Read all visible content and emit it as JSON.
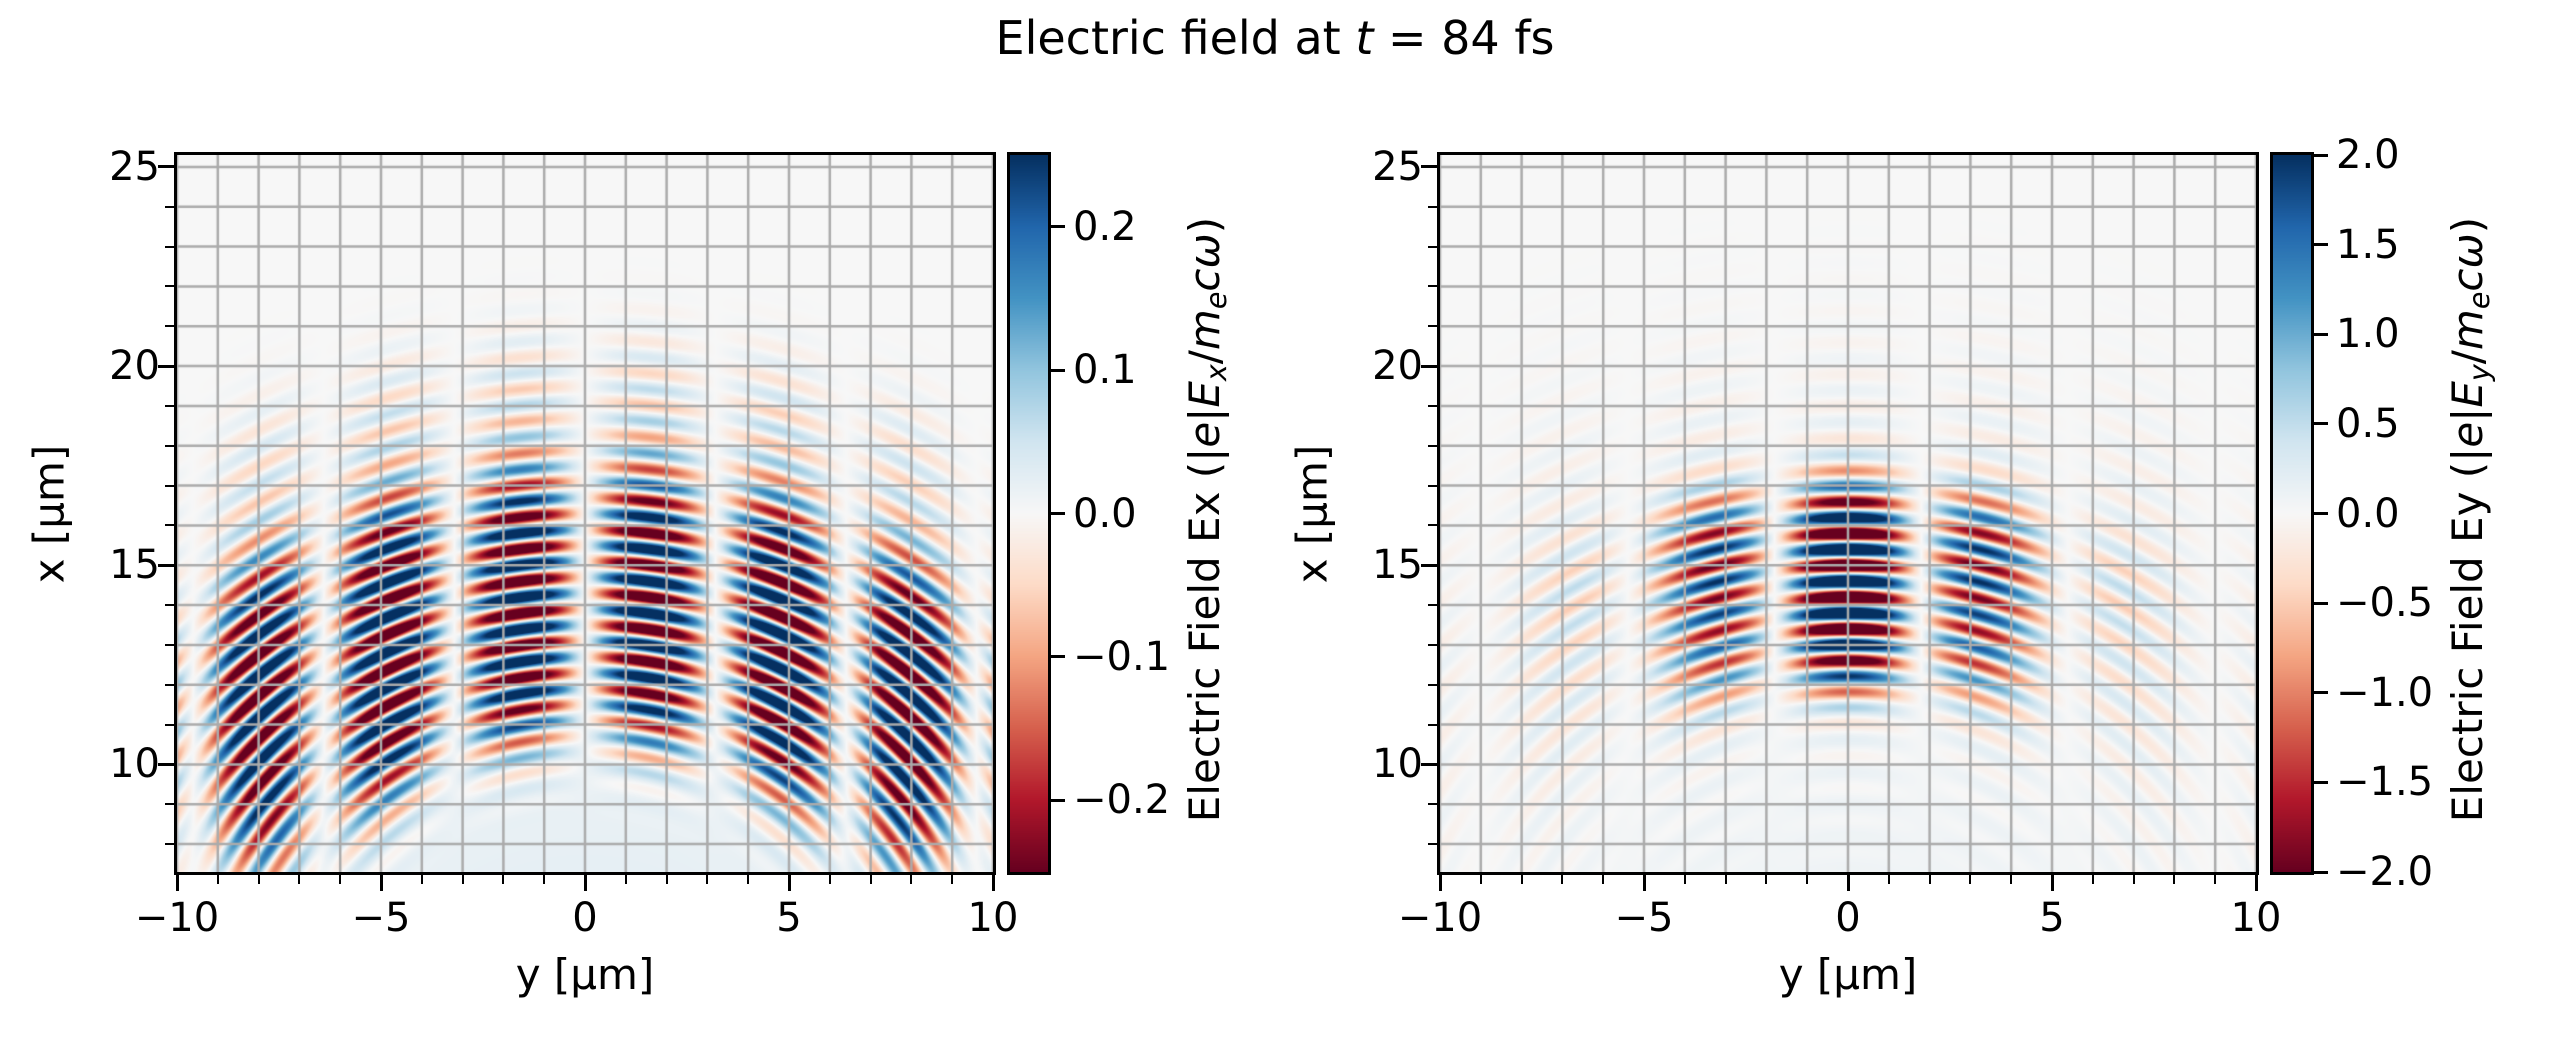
{
  "title": {
    "pre": "Electric field at ",
    "var": "t",
    "post": " = 84 fs"
  },
  "colormap": {
    "name": "RdBu",
    "stops": [
      "#67001f",
      "#b2182b",
      "#d6604d",
      "#f4a582",
      "#fddbc7",
      "#f7f7f7",
      "#d1e5f0",
      "#92c5de",
      "#4393c3",
      "#2166ac",
      "#053061"
    ]
  },
  "grid_color": "#ababab",
  "chart_data": [
    {
      "type": "heatmap",
      "panel": "left",
      "component": "Ex",
      "xlabel": "y [μm]",
      "ylabel": "x [μm]",
      "xlim": [
        -10,
        10
      ],
      "ylim": [
        7.3,
        25.3
      ],
      "grid": true,
      "xticks": {
        "values": [
          -10,
          -5,
          0,
          5,
          10
        ],
        "labels": [
          "−10",
          "−5",
          "0",
          "5",
          "10"
        ],
        "minor_step": 1
      },
      "yticks": {
        "values": [
          10,
          15,
          20,
          25
        ],
        "labels": [
          "10",
          "15",
          "20",
          "25"
        ],
        "minor_step": 1
      },
      "colorbar": {
        "vmin": -0.25,
        "vmax": 0.25,
        "ticks": [
          0.2,
          0.1,
          0.0,
          -0.1,
          -0.2
        ],
        "tick_labels": [
          "0.2",
          "0.1",
          "0.0",
          "−0.1",
          "−0.2"
        ],
        "label_parts": [
          {
            "t": "Electric Field Ex (|",
            "it": false,
            "sub": false
          },
          {
            "t": "e",
            "it": true,
            "sub": false
          },
          {
            "t": "|",
            "it": false,
            "sub": false
          },
          {
            "t": "E",
            "it": true,
            "sub": false
          },
          {
            "t": "x",
            "it": true,
            "sub": true
          },
          {
            "t": "/",
            "it": false,
            "sub": false
          },
          {
            "t": "m",
            "it": true,
            "sub": false
          },
          {
            "t": "e",
            "it": true,
            "sub": true
          },
          {
            "t": "c",
            "it": true,
            "sub": false
          },
          {
            "t": "ω",
            "it": true,
            "sub": false
          },
          {
            "t": ")",
            "it": false,
            "sub": false
          }
        ]
      },
      "field": {
        "description": "Transverse snapshot of Ex of a focused laser pulse: annular wave packet of curved wavefronts centered below the frame, odd node along y=0, strong side lobes reaching the lower corners, faint outer arcs and a diffuse blue glow near the bottom.",
        "source_x": 2.5,
        "source_y": 0,
        "wavelength": 0.8,
        "phase": 0.0,
        "radial_center": 11.5,
        "radial_width": 3.5,
        "radial_power": 4,
        "angular_width": 1.05,
        "angular_power": 8,
        "transverse": "sin",
        "transverse_period": 6.4,
        "halo_amp": 0.2,
        "halo_radius": 16.4,
        "halo_width": 1.8,
        "halo_angular_width": 1.0,
        "bias_amp": 0.1,
        "bias_radius": 8.5,
        "amplitude": 1.45
      }
    },
    {
      "type": "heatmap",
      "panel": "right",
      "component": "Ey",
      "xlabel": "y [μm]",
      "ylabel": "x [μm]",
      "xlim": [
        -10,
        10
      ],
      "ylim": [
        7.3,
        25.3
      ],
      "grid": true,
      "xticks": {
        "values": [
          -10,
          -5,
          0,
          5,
          10
        ],
        "labels": [
          "−10",
          "−5",
          "0",
          "5",
          "10"
        ],
        "minor_step": 1
      },
      "yticks": {
        "values": [
          10,
          15,
          20,
          25
        ],
        "labels": [
          "10",
          "15",
          "20",
          "25"
        ],
        "minor_step": 1
      },
      "colorbar": {
        "vmin": -2.0,
        "vmax": 2.0,
        "ticks": [
          2.0,
          1.5,
          1.0,
          0.5,
          0.0,
          -0.5,
          -1.0,
          -1.5,
          -2.0
        ],
        "tick_labels": [
          "2.0",
          "1.5",
          "1.0",
          "0.5",
          "0.0",
          "−0.5",
          "−1.0",
          "−1.5",
          "−2.0"
        ],
        "label_parts": [
          {
            "t": "Electric Field Ey (|",
            "it": false,
            "sub": false
          },
          {
            "t": "e",
            "it": true,
            "sub": false
          },
          {
            "t": "|",
            "it": false,
            "sub": false
          },
          {
            "t": "E",
            "it": true,
            "sub": false
          },
          {
            "t": "y",
            "it": true,
            "sub": true
          },
          {
            "t": "/",
            "it": false,
            "sub": false
          },
          {
            "t": "m",
            "it": true,
            "sub": false
          },
          {
            "t": "e",
            "it": true,
            "sub": true
          },
          {
            "t": "c",
            "it": true,
            "sub": false
          },
          {
            "t": "ω",
            "it": true,
            "sub": false
          },
          {
            "t": ")",
            "it": false,
            "sub": false
          }
        ]
      },
      "field": {
        "description": "Transverse snapshot of Ey of the same pulse: nearly horizontal red/blue fringes between x=12 and x=17.5 um confined to |y|<5 um, split into three phase-flipped column groups with nodes near y=+-1.8 um, surrounded by faint wide arcs.",
        "source_x": 2.5,
        "source_y": 0,
        "wavelength": 0.8,
        "phase": 0.79,
        "radial_center": 12.0,
        "radial_width": 2.6,
        "radial_power": 4,
        "angular_width": 0.35,
        "angular_power": 2,
        "transverse": "cos",
        "transverse_period": 7.2,
        "halo_amp": 0.1,
        "halo_radius": 12.5,
        "halo_width": 4.5,
        "halo_angular_width": 1.2,
        "bias_amp": 0.04,
        "bias_radius": 8.5,
        "amplitude": 1.6
      }
    }
  ]
}
